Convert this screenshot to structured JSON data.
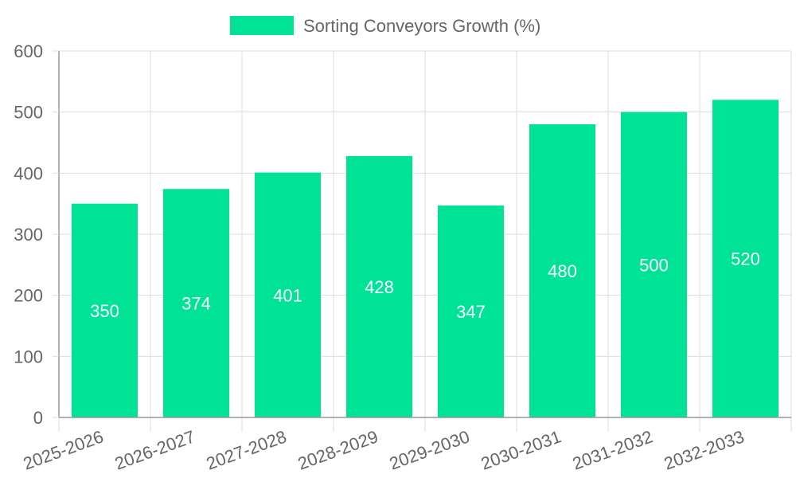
{
  "chart_data": {
    "type": "bar",
    "categories": [
      "2025-2026",
      "2026-2027",
      "2027-2028",
      "2028-2029",
      "2029-2030",
      "2030-2031",
      "2031-2032",
      "2032-2033"
    ],
    "series": [
      {
        "name": "Sorting Conveyors Growth (%)",
        "values": [
          350,
          374,
          401,
          428,
          347,
          480,
          500,
          520
        ]
      }
    ],
    "ylim": [
      0,
      600
    ],
    "yticks": [
      0,
      100,
      200,
      300,
      400,
      500,
      600
    ],
    "grid": true,
    "legend_position": "top",
    "data_labels": true,
    "colors": {
      "bar": "#00e396",
      "grid": "#dddddd",
      "axis": "#999999",
      "text": "#666666",
      "label": "#ffffff"
    }
  }
}
